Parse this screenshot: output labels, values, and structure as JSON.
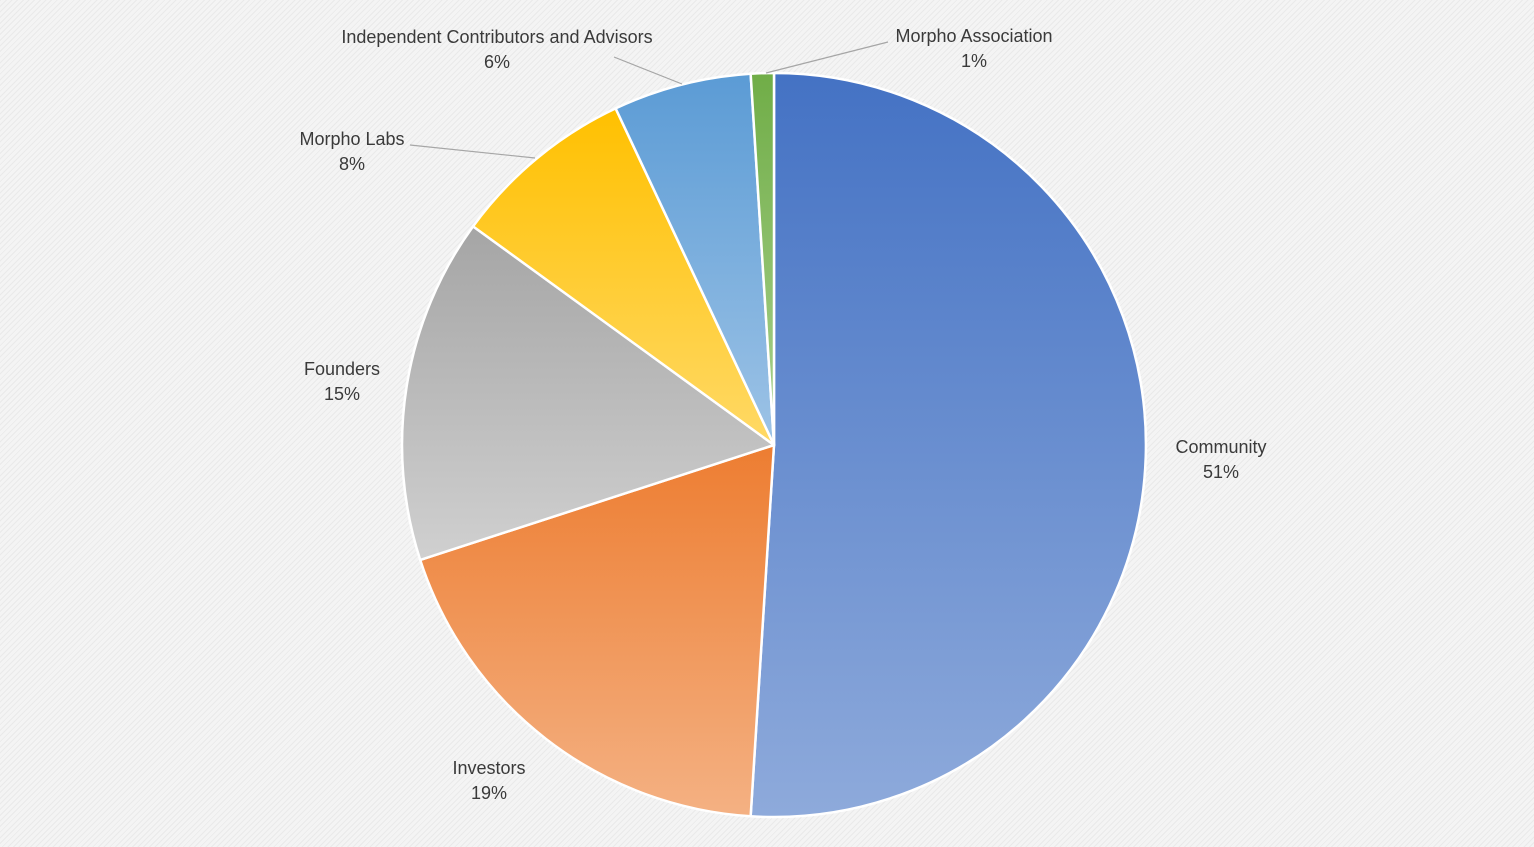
{
  "chart_data": {
    "type": "pie",
    "title": "",
    "start_angle_deg": 0,
    "direction": "clockwise",
    "slices": [
      {
        "key": "community",
        "label": "Community",
        "value": 51,
        "value_label": "51%",
        "color_top": "#4472c4",
        "color_bottom": "#8eaadb"
      },
      {
        "key": "investors",
        "label": "Investors",
        "value": 19,
        "value_label": "19%",
        "color_top": "#ed7d31",
        "color_bottom": "#f4b183"
      },
      {
        "key": "founders",
        "label": "Founders",
        "value": 15,
        "value_label": "15%",
        "color_top": "#a5a5a5",
        "color_bottom": "#d0d0d0"
      },
      {
        "key": "morpho-labs",
        "label": "Morpho Labs",
        "value": 8,
        "value_label": "8%",
        "color_top": "#ffc000",
        "color_bottom": "#ffd966"
      },
      {
        "key": "independent-contributors-and-advisors",
        "label": "Independent Contributors and Advisors",
        "value": 6,
        "value_label": "6%",
        "color_top": "#5b9bd5",
        "color_bottom": "#9dc3e6"
      },
      {
        "key": "morpho-association",
        "label": "Morpho Association",
        "value": 1,
        "value_label": "1%",
        "color_top": "#70ad47",
        "color_bottom": "#a9d18e"
      }
    ]
  }
}
